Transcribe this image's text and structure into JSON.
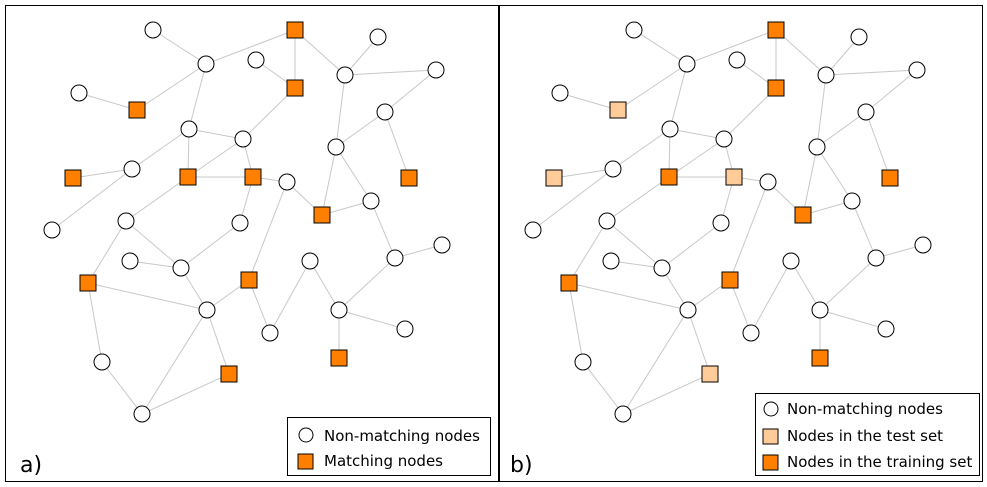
{
  "colors": {
    "orange": "#ff8000",
    "light_orange": "#ffcc99",
    "edge": "#c8c8c8"
  },
  "panels": [
    {
      "label": "a)",
      "legend": [
        {
          "marker": "circle",
          "text": "Non-matching nodes"
        },
        {
          "marker": "square-orange",
          "text": "Matching nodes"
        }
      ]
    },
    {
      "label": "b)",
      "legend": [
        {
          "marker": "circle",
          "text": "Non-matching nodes"
        },
        {
          "marker": "square-light",
          "text": "Nodes in the test set"
        },
        {
          "marker": "square-orange",
          "text": "Nodes in the training set"
        }
      ]
    }
  ]
}
